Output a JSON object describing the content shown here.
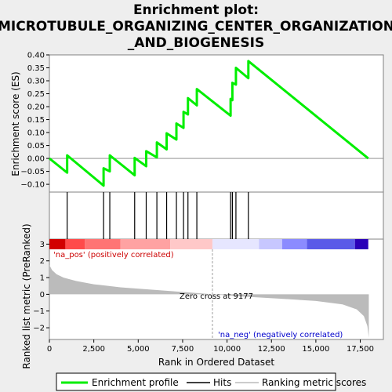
{
  "chart_data": {
    "type": "line",
    "title_lines": [
      "Enrichment plot:",
      "MICROTUBULE_ORGANIZING_CENTER_ORGANIZATION",
      "_AND_BIOGENESIS"
    ],
    "xlabel": "Rank in Ordered Dataset",
    "ylabel_top": "Enrichment score (ES)",
    "ylabel_bottom": "Ranked list metric (PreRanked)",
    "xlim": [
      0,
      18800
    ],
    "x_ticks": [
      0,
      2500,
      5000,
      7500,
      10000,
      12500,
      15000,
      17500
    ],
    "x_tick_labels": [
      "0",
      "2,500",
      "5,000",
      "7,500",
      "10,000",
      "12,500",
      "15,000",
      "17,500"
    ],
    "es_ylim": [
      -0.13,
      0.4
    ],
    "es_ticks": [
      -0.1,
      -0.05,
      0.0,
      0.05,
      0.1,
      0.15,
      0.2,
      0.25,
      0.3,
      0.35,
      0.4
    ],
    "es_tick_labels": [
      "−0.10",
      "−0.05",
      "0.00",
      "0.05",
      "0.10",
      "0.15",
      "0.20",
      "0.25",
      "0.30",
      "0.35",
      "0.40"
    ],
    "metric_ylim": [
      -2.7,
      3.3
    ],
    "metric_ticks": [
      -2,
      -1,
      0,
      1,
      2,
      3
    ],
    "metric_tick_labels": [
      "−2",
      "−1",
      "0",
      "1",
      "2",
      "3"
    ],
    "hits": [
      1000,
      3050,
      3400,
      4800,
      5450,
      6050,
      6600,
      7150,
      7550,
      7800,
      8300,
      10200,
      10300,
      10500,
      11200
    ],
    "es_curve": [
      [
        0,
        0.0
      ],
      [
        1000,
        -0.055
      ],
      [
        1000,
        0.012
      ],
      [
        3050,
        -0.105
      ],
      [
        3050,
        -0.038
      ],
      [
        3400,
        -0.05
      ],
      [
        3400,
        0.012
      ],
      [
        4800,
        -0.065
      ],
      [
        4800,
        0.002
      ],
      [
        5450,
        -0.03
      ],
      [
        5450,
        0.028
      ],
      [
        6050,
        0.004
      ],
      [
        6050,
        0.062
      ],
      [
        6600,
        0.035
      ],
      [
        6600,
        0.097
      ],
      [
        7150,
        0.073
      ],
      [
        7150,
        0.135
      ],
      [
        7550,
        0.118
      ],
      [
        7550,
        0.18
      ],
      [
        7800,
        0.17
      ],
      [
        7800,
        0.233
      ],
      [
        8300,
        0.205
      ],
      [
        8300,
        0.268
      ],
      [
        10200,
        0.165
      ],
      [
        10200,
        0.23
      ],
      [
        10300,
        0.225
      ],
      [
        10300,
        0.292
      ],
      [
        10500,
        0.285
      ],
      [
        10500,
        0.35
      ],
      [
        11200,
        0.31
      ],
      [
        11200,
        0.376
      ],
      [
        17950,
        0.0
      ]
    ],
    "metric_curve": [
      [
        0,
        1.75
      ],
      [
        150,
        1.45
      ],
      [
        400,
        1.2
      ],
      [
        800,
        1.0
      ],
      [
        1500,
        0.8
      ],
      [
        2500,
        0.6
      ],
      [
        4000,
        0.42
      ],
      [
        6000,
        0.26
      ],
      [
        8000,
        0.1
      ],
      [
        9177,
        0.0
      ],
      [
        11000,
        -0.14
      ],
      [
        13000,
        -0.26
      ],
      [
        15000,
        -0.4
      ],
      [
        16500,
        -0.6
      ],
      [
        17300,
        -0.9
      ],
      [
        17700,
        -1.3
      ],
      [
        17900,
        -1.9
      ],
      [
        17980,
        -2.6
      ]
    ],
    "zero_cross": 9177,
    "zero_cross_label": "Zero cross at 9177",
    "pos_label": "'na_pos' (positively correlated)",
    "neg_label": "'na_neg' (negatively correlated)",
    "heat_colors": [
      "#d20000",
      "#ff4a4a",
      "#ff7474",
      "#ffa2a2",
      "#ffc8c8",
      "#e6e6ff",
      "#c7c7ff",
      "#8b8bff",
      "#5a5ae8",
      "#2a00b8"
    ],
    "heat_bounds": [
      0,
      900,
      2000,
      4000,
      6800,
      9177,
      11800,
      13100,
      14500,
      17200,
      17950
    ],
    "legend": [
      "Enrichment profile",
      "Hits",
      "Ranking metric scores"
    ],
    "colors": {
      "es_line": "#00ee00",
      "hits": "#000000",
      "metric_fill": "#bbbbbb",
      "pos_text": "#cc0000",
      "neg_text": "#0000cc",
      "zero_line": "#a0a0a0"
    }
  }
}
